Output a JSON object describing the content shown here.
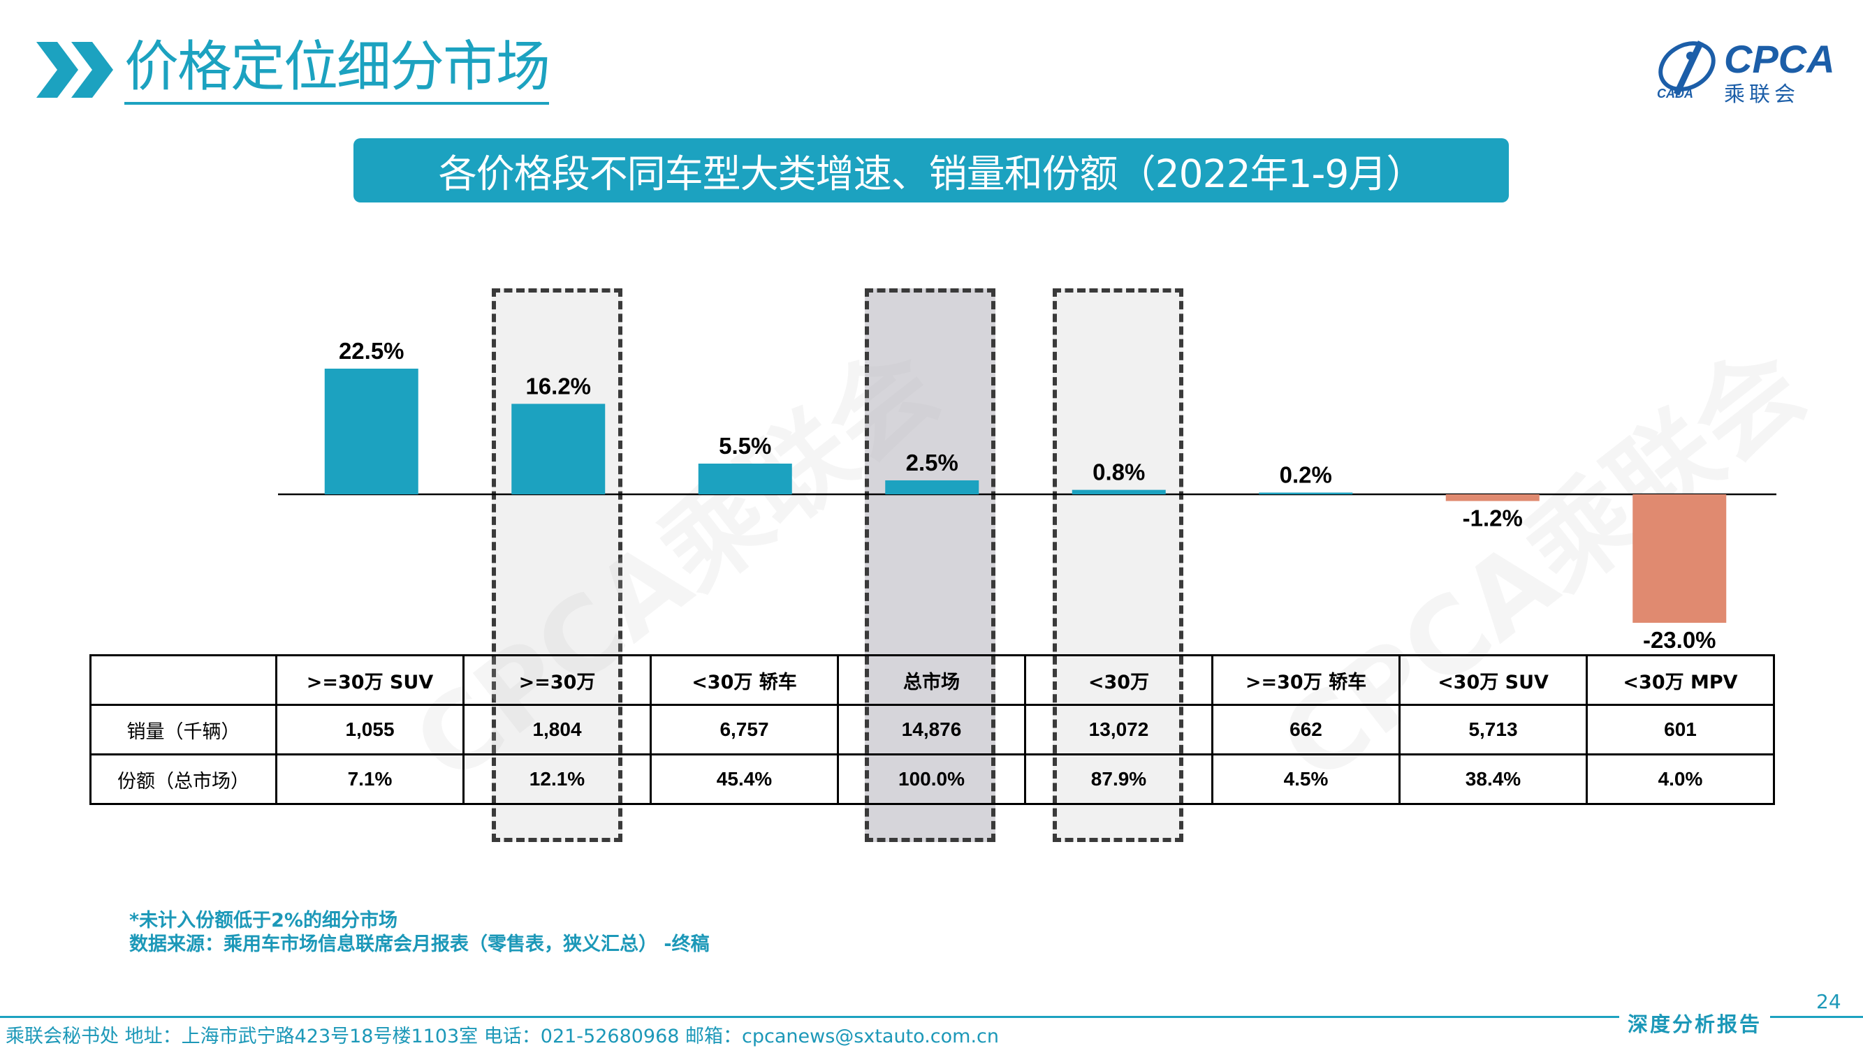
{
  "header": {
    "title": "价格定位细分市场",
    "logo_text": "CPCA",
    "logo_cn": "乘联会",
    "logo_sub": "CADA"
  },
  "banner": {
    "text": "各价格段不同车型大类增速、销量和份额（2022年1-9月）"
  },
  "chart_data": {
    "type": "bar",
    "title": "各价格段不同车型大类增速、销量和份额（2022年1-9月）",
    "categories": [
      ">=30万 SUV",
      ">=30万",
      "<30万 轿车",
      "总市场",
      "<30万",
      ">=30万 轿车",
      "<30万 SUV",
      "<30万 MPV"
    ],
    "values": [
      22.5,
      16.2,
      5.5,
      2.5,
      0.8,
      0.2,
      -1.2,
      -23.0
    ],
    "value_labels": [
      "22.5%",
      "16.2%",
      "5.5%",
      "2.5%",
      "0.8%",
      "0.2%",
      "-1.2%",
      "-23.0%"
    ],
    "unit": "%",
    "colors": {
      "positive": "#1ca2c0",
      "negative": "#e08a70"
    },
    "grid": false,
    "legend": "none"
  },
  "table": {
    "headers": [
      "",
      ">=30万 SUV",
      ">=30万",
      "<30万 轿车",
      "总市场",
      "<30万",
      ">=30万 轿车",
      "<30万 SUV",
      "<30万 MPV"
    ],
    "rows": [
      {
        "label": "销量（千辆）",
        "cells": [
          "1,055",
          "1,804",
          "6,757",
          "14,876",
          "13,072",
          "662",
          "5,713",
          "601"
        ]
      },
      {
        "label": "份额（总市场）",
        "cells": [
          "7.1%",
          "12.1%",
          "45.4%",
          "100.0%",
          "87.9%",
          "4.5%",
          "38.4%",
          "4.0%"
        ]
      }
    ]
  },
  "notes": {
    "line1": "*未计入份额低于2%的细分市场",
    "line2": "数据来源：乘用车市场信息联席会月报表（零售表，狭义汇总） -终稿"
  },
  "watermark": "CPCA乘联会",
  "footer": {
    "text": "乘联会秘书处   地址：上海市武宁路423号18号楼1103室  电话：021-52680968   邮箱：cpcanews@sxtauto.com.cn",
    "report_tag": "深度分析报告",
    "page_number": "24"
  }
}
